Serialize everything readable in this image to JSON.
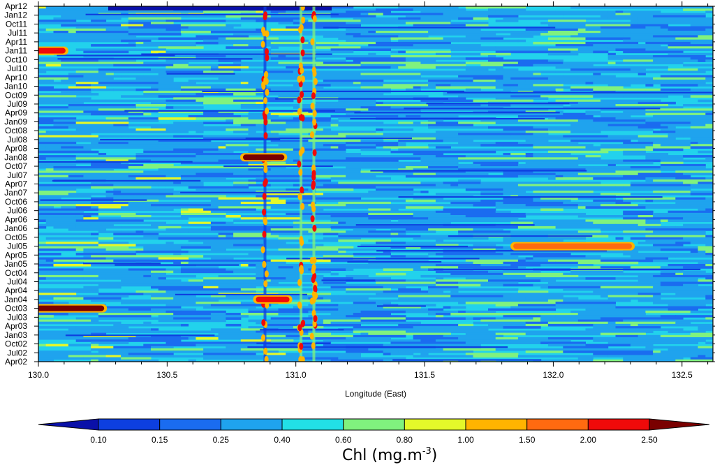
{
  "chart_data": {
    "type": "heatmap",
    "title": "",
    "xlabel": "Longitude (East)",
    "ylabel": "",
    "xlim": [
      130.0,
      132.62
    ],
    "x_ticks": [
      {
        "value": 130.0,
        "label": "130.0"
      },
      {
        "value": 130.5,
        "label": "130.5"
      },
      {
        "value": 131.0,
        "label": "131.0"
      },
      {
        "value": 131.5,
        "label": "131.5"
      },
      {
        "value": 132.0,
        "label": "132.0"
      },
      {
        "value": 132.5,
        "label": "132.5"
      }
    ],
    "y_ticks": [
      "Apr02",
      "Jul02",
      "Oct02",
      "Jan03",
      "Apr03",
      "Jul03",
      "Oct03",
      "Jan04",
      "Apr04",
      "Jul04",
      "Oct04",
      "Jan05",
      "Apr05",
      "Jul05",
      "Oct05",
      "Jan06",
      "Apr06",
      "Jul06",
      "Oct06",
      "Jan07",
      "Apr07",
      "Jul07",
      "Oct07",
      "Jan08",
      "Apr08",
      "Jul08",
      "Oct08",
      "Jan09",
      "Apr09",
      "Jul09",
      "Oct09",
      "Jan10",
      "Apr10",
      "Jul10",
      "Oct10",
      "Jan11",
      "Apr11",
      "Jul11",
      "Oct11",
      "Jan12",
      "Apr12"
    ],
    "colorbar": {
      "title": "Chl (mg.m",
      "title_sup": "-3",
      "title_end": ")",
      "levels": [
        "0.10",
        "0.15",
        "0.25",
        "0.40",
        "0.60",
        "0.80",
        "1.00",
        "1.50",
        "2.00",
        "2.50"
      ],
      "colors": [
        "#0a10a8",
        "#0d3fe0",
        "#1a6cf0",
        "#1fa3ee",
        "#22e0e6",
        "#80f27e",
        "#e4f82a",
        "#ffb400",
        "#ff6a10",
        "#f00a0a",
        "#7a0000"
      ]
    },
    "features": {
      "background_level": "0.25-0.40",
      "hot_spots": [
        {
          "time": "Oct03",
          "lon_start": 130.0,
          "lon_end": 130.25,
          "level": "2.50"
        },
        {
          "time": "Jan08",
          "lon_start": 130.8,
          "lon_end": 130.95,
          "level": "2.50"
        },
        {
          "time": "Jan04",
          "lon_start": 130.85,
          "lon_end": 130.97,
          "level": "2.00"
        },
        {
          "time": "Jul05",
          "lon_start": 131.85,
          "lon_end": 132.3,
          "level": "1.50"
        },
        {
          "time": "Jan11",
          "lon_start": 130.0,
          "lon_end": 130.1,
          "level": "2.00"
        }
      ],
      "vertical_streaks_lon": [
        130.88,
        131.02,
        131.07
      ]
    }
  }
}
